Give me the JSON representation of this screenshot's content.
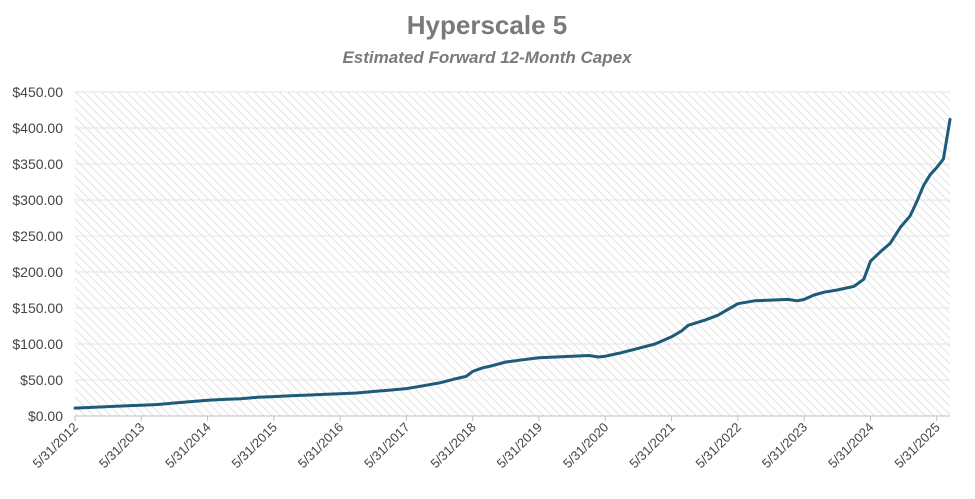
{
  "chart_data": {
    "type": "line",
    "title": "Hyperscale 5",
    "subtitle": "Estimated Forward 12-Month Capex",
    "xlabel": "",
    "ylabel": "",
    "ylim": [
      0,
      450
    ],
    "y_ticks": [
      "$0.00",
      "$50.00",
      "$100.00",
      "$150.00",
      "$200.00",
      "$250.00",
      "$300.00",
      "$350.00",
      "$400.00",
      "$450.00"
    ],
    "y_tick_values": [
      0,
      50,
      100,
      150,
      200,
      250,
      300,
      350,
      400,
      450
    ],
    "x_ticks": [
      "5/31/2012",
      "5/31/2013",
      "5/31/2014",
      "5/31/2015",
      "5/31/2016",
      "5/31/2017",
      "5/31/2018",
      "5/31/2019",
      "5/31/2020",
      "5/31/2021",
      "5/31/2022",
      "5/31/2023",
      "5/31/2024",
      "5/31/2025"
    ],
    "x_tick_values": [
      2012.0,
      2013.0,
      2014.0,
      2015.0,
      2016.0,
      2017.0,
      2018.0,
      2019.0,
      2020.0,
      2021.0,
      2022.0,
      2023.0,
      2024.0,
      2025.0
    ],
    "xlim": [
      2012.0,
      2025.2
    ],
    "grid": true,
    "series": [
      {
        "name": "Hyperscale 5",
        "color": "#1d5b79",
        "x": [
          2012.0,
          2012.25,
          2012.5,
          2012.75,
          2013.0,
          2013.25,
          2013.5,
          2013.75,
          2014.0,
          2014.25,
          2014.5,
          2014.75,
          2015.0,
          2015.25,
          2015.5,
          2015.75,
          2016.0,
          2016.25,
          2016.5,
          2016.75,
          2017.0,
          2017.25,
          2017.5,
          2017.75,
          2017.9,
          2018.0,
          2018.15,
          2018.3,
          2018.5,
          2018.75,
          2019.0,
          2019.25,
          2019.5,
          2019.75,
          2019.9,
          2020.0,
          2020.25,
          2020.5,
          2020.75,
          2021.0,
          2021.15,
          2021.25,
          2021.5,
          2021.7,
          2021.85,
          2022.0,
          2022.25,
          2022.5,
          2022.75,
          2022.9,
          2023.0,
          2023.15,
          2023.3,
          2023.5,
          2023.75,
          2023.9,
          2024.0,
          2024.15,
          2024.3,
          2024.45,
          2024.6,
          2024.7,
          2024.8,
          2024.9,
          2025.0,
          2025.1,
          2025.2
        ],
        "values": [
          11,
          12,
          13,
          14,
          15,
          16,
          18,
          20,
          22,
          23,
          24,
          26,
          27,
          28,
          29,
          30,
          31,
          32,
          34,
          36,
          38,
          42,
          46,
          52,
          55,
          62,
          67,
          70,
          75,
          78,
          81,
          82,
          83,
          84,
          82,
          83,
          88,
          94,
          100,
          110,
          118,
          126,
          133,
          140,
          148,
          156,
          160,
          161,
          162,
          160,
          162,
          168,
          172,
          175,
          180,
          190,
          215,
          228,
          240,
          262,
          278,
          298,
          320,
          335,
          345,
          357,
          412
        ]
      }
    ]
  }
}
